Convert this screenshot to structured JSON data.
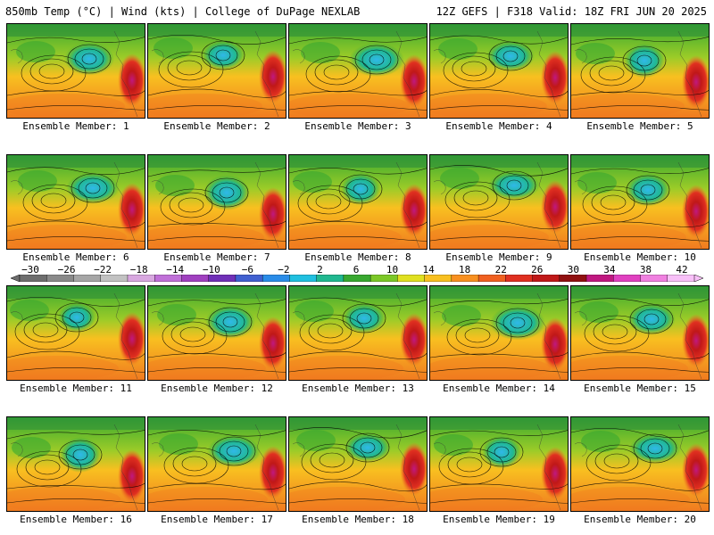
{
  "header": {
    "left": "850mb Temp (°C) | Wind (kts) | College of DuPage NEXLAB",
    "right": "12Z GEFS | F318 Valid: 18Z FRI JUN 20 2025"
  },
  "colorbar": {
    "labels": [
      "−30",
      "−26",
      "−22",
      "−18",
      "−14",
      "−10",
      "−6",
      "−2",
      "2",
      "6",
      "10",
      "14",
      "18",
      "22",
      "26",
      "30",
      "34",
      "38",
      "42"
    ],
    "colors": [
      "#6e6e6e",
      "#8a8a8a",
      "#a6a6a6",
      "#c2c2c2",
      "#d8a8e0",
      "#c070d8",
      "#a040c0",
      "#7030b8",
      "#4060d0",
      "#2a8ce8",
      "#20c0e0",
      "#20b890",
      "#38a830",
      "#7cc828",
      "#e0e020",
      "#f8c020",
      "#f89020",
      "#f06020",
      "#e03020",
      "#c01818",
      "#901010",
      "#c01880",
      "#e040c0",
      "#f080e0",
      "#f8c0f8"
    ]
  },
  "members": [
    {
      "label": "Ensemble Member: 1"
    },
    {
      "label": "Ensemble Member: 2"
    },
    {
      "label": "Ensemble Member: 3"
    },
    {
      "label": "Ensemble Member: 4"
    },
    {
      "label": "Ensemble Member: 5"
    },
    {
      "label": "Ensemble Member: 6"
    },
    {
      "label": "Ensemble Member: 7"
    },
    {
      "label": "Ensemble Member: 8"
    },
    {
      "label": "Ensemble Member: 9"
    },
    {
      "label": "Ensemble Member: 10"
    },
    {
      "label": "Ensemble Member: 11"
    },
    {
      "label": "Ensemble Member: 12"
    },
    {
      "label": "Ensemble Member: 13"
    },
    {
      "label": "Ensemble Member: 14"
    },
    {
      "label": "Ensemble Member: 15"
    },
    {
      "label": "Ensemble Member: 16"
    },
    {
      "label": "Ensemble Member: 17"
    },
    {
      "label": "Ensemble Member: 18"
    },
    {
      "label": "Ensemble Member: 19"
    },
    {
      "label": "Ensemble Member: 20"
    }
  ]
}
